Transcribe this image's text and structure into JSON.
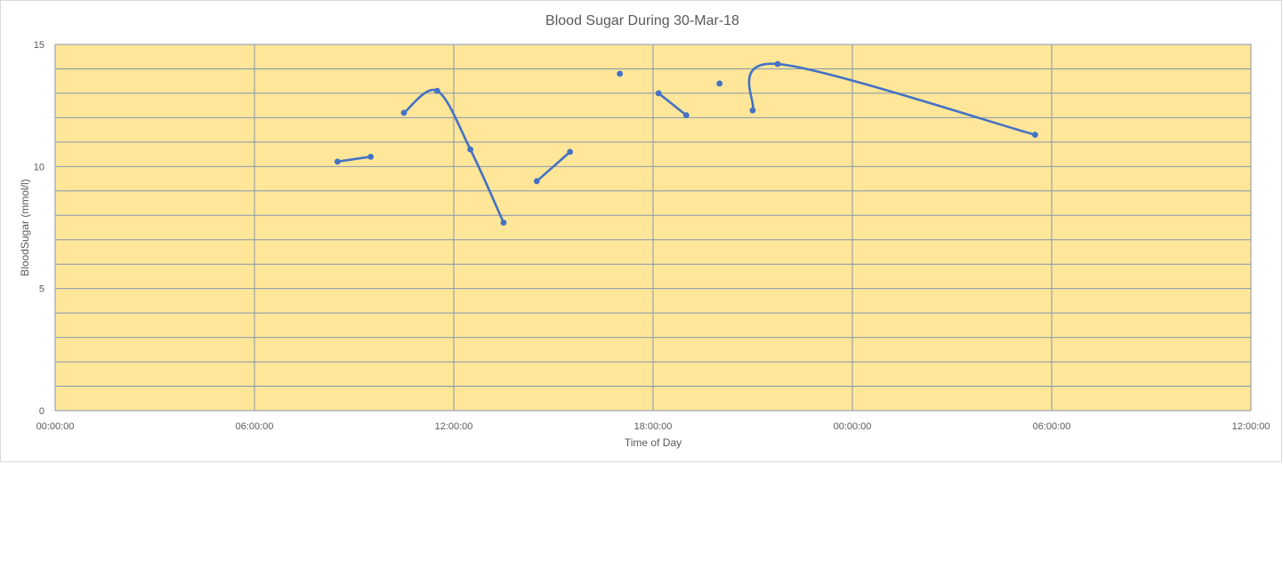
{
  "chart_data": {
    "type": "line",
    "title": "Blood Sugar During 30-Mar-18",
    "xlabel": "Time of Day",
    "ylabel": "BloodSugar (mmol/l)",
    "xlim": [
      "00:00:00",
      "12:00:00 (next day)"
    ],
    "ylim": [
      0,
      15
    ],
    "x_ticks": [
      "00:00:00",
      "06:00:00",
      "12:00:00",
      "18:00:00",
      "00:00:00",
      "06:00:00",
      "12:00:00"
    ],
    "y_ticks": [
      "0",
      "5",
      "10",
      "15"
    ],
    "grid": true,
    "smoothed": true,
    "plot_background": "#FFE699",
    "series_color": "#4472C4",
    "grid_color": "#8497B0",
    "series": [
      {
        "segments": [
          [
            {
              "x": "08:30",
              "y": 10.2
            },
            {
              "x": "09:30",
              "y": 10.4
            }
          ],
          [
            {
              "x": "10:30",
              "y": 12.2
            },
            {
              "x": "11:30",
              "y": 13.1
            },
            {
              "x": "12:30",
              "y": 10.7
            },
            {
              "x": "13:30",
              "y": 7.7
            }
          ],
          [
            {
              "x": "14:30",
              "y": 9.4
            },
            {
              "x": "15:30",
              "y": 10.6
            }
          ],
          [
            {
              "x": "17:00",
              "y": 13.8
            }
          ],
          [
            {
              "x": "18:10",
              "y": 13.0
            },
            {
              "x": "19:00",
              "y": 12.1
            }
          ],
          [
            {
              "x": "20:00",
              "y": 13.4
            }
          ],
          [
            {
              "x": "21:00",
              "y": 12.3
            },
            {
              "x": "21:45",
              "y": 14.2
            },
            {
              "x": "05:30 (next day)",
              "y": 11.3
            }
          ]
        ]
      }
    ]
  }
}
